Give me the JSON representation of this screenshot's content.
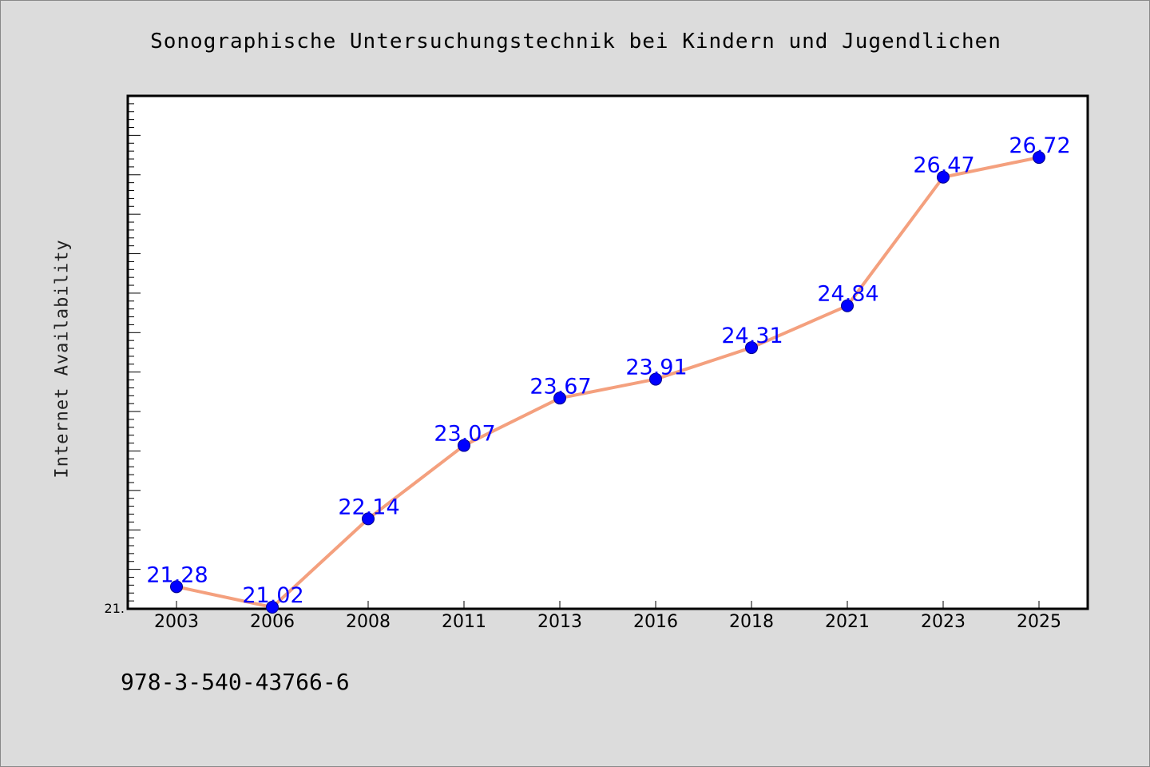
{
  "chart_data": {
    "type": "line",
    "title": "Sonographische Untersuchungstechnik bei Kindern und Jugendlichen",
    "xlabel": "",
    "ylabel": "Internet Availability",
    "categories": [
      "2003",
      "2006",
      "2008",
      "2011",
      "2013",
      "2016",
      "2018",
      "2021",
      "2023",
      "2025"
    ],
    "series": [
      {
        "values": [
          21.28,
          21.02,
          22.14,
          23.07,
          23.67,
          23.91,
          24.31,
          24.84,
          26.47,
          26.72
        ],
        "labels": [
          "21.28",
          "21.02",
          "22.14",
          "23.07",
          "23.67",
          "23.91",
          "24.31",
          "24.84",
          "26.47",
          "26.72"
        ]
      }
    ],
    "ylim": [
      21.0,
      27.5
    ],
    "ytick_labels": [
      "21."
    ],
    "line_color": "#f4a07e",
    "marker_color": "#0000ff",
    "label_color": "#0000ff",
    "grid": false
  },
  "footer": {
    "text": "978-3-540-43766-6"
  }
}
